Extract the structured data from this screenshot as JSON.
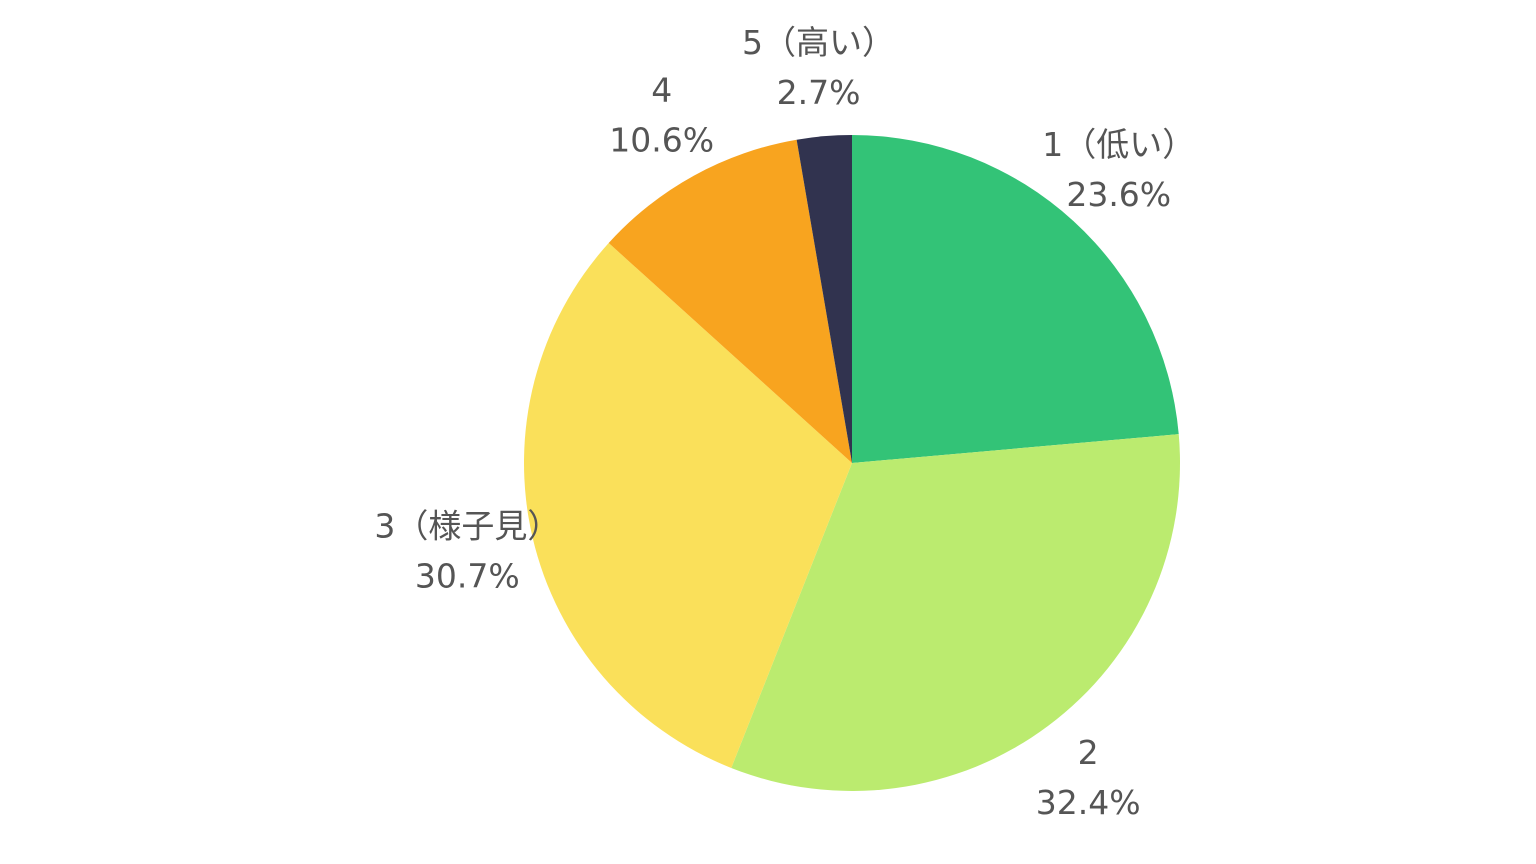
{
  "chart_data": {
    "type": "pie",
    "categories": [
      "1（低い）",
      "2",
      "3（様子見）",
      "4",
      "5（高い）"
    ],
    "values": [
      23.6,
      32.4,
      30.7,
      10.6,
      2.7
    ],
    "value_labels": [
      "23.6%",
      "32.4%",
      "30.7%",
      "10.6%",
      "2.7%"
    ],
    "colors": [
      "#33c377",
      "#bbeb6f",
      "#fae05a",
      "#f8a41f",
      "#31334f"
    ]
  }
}
